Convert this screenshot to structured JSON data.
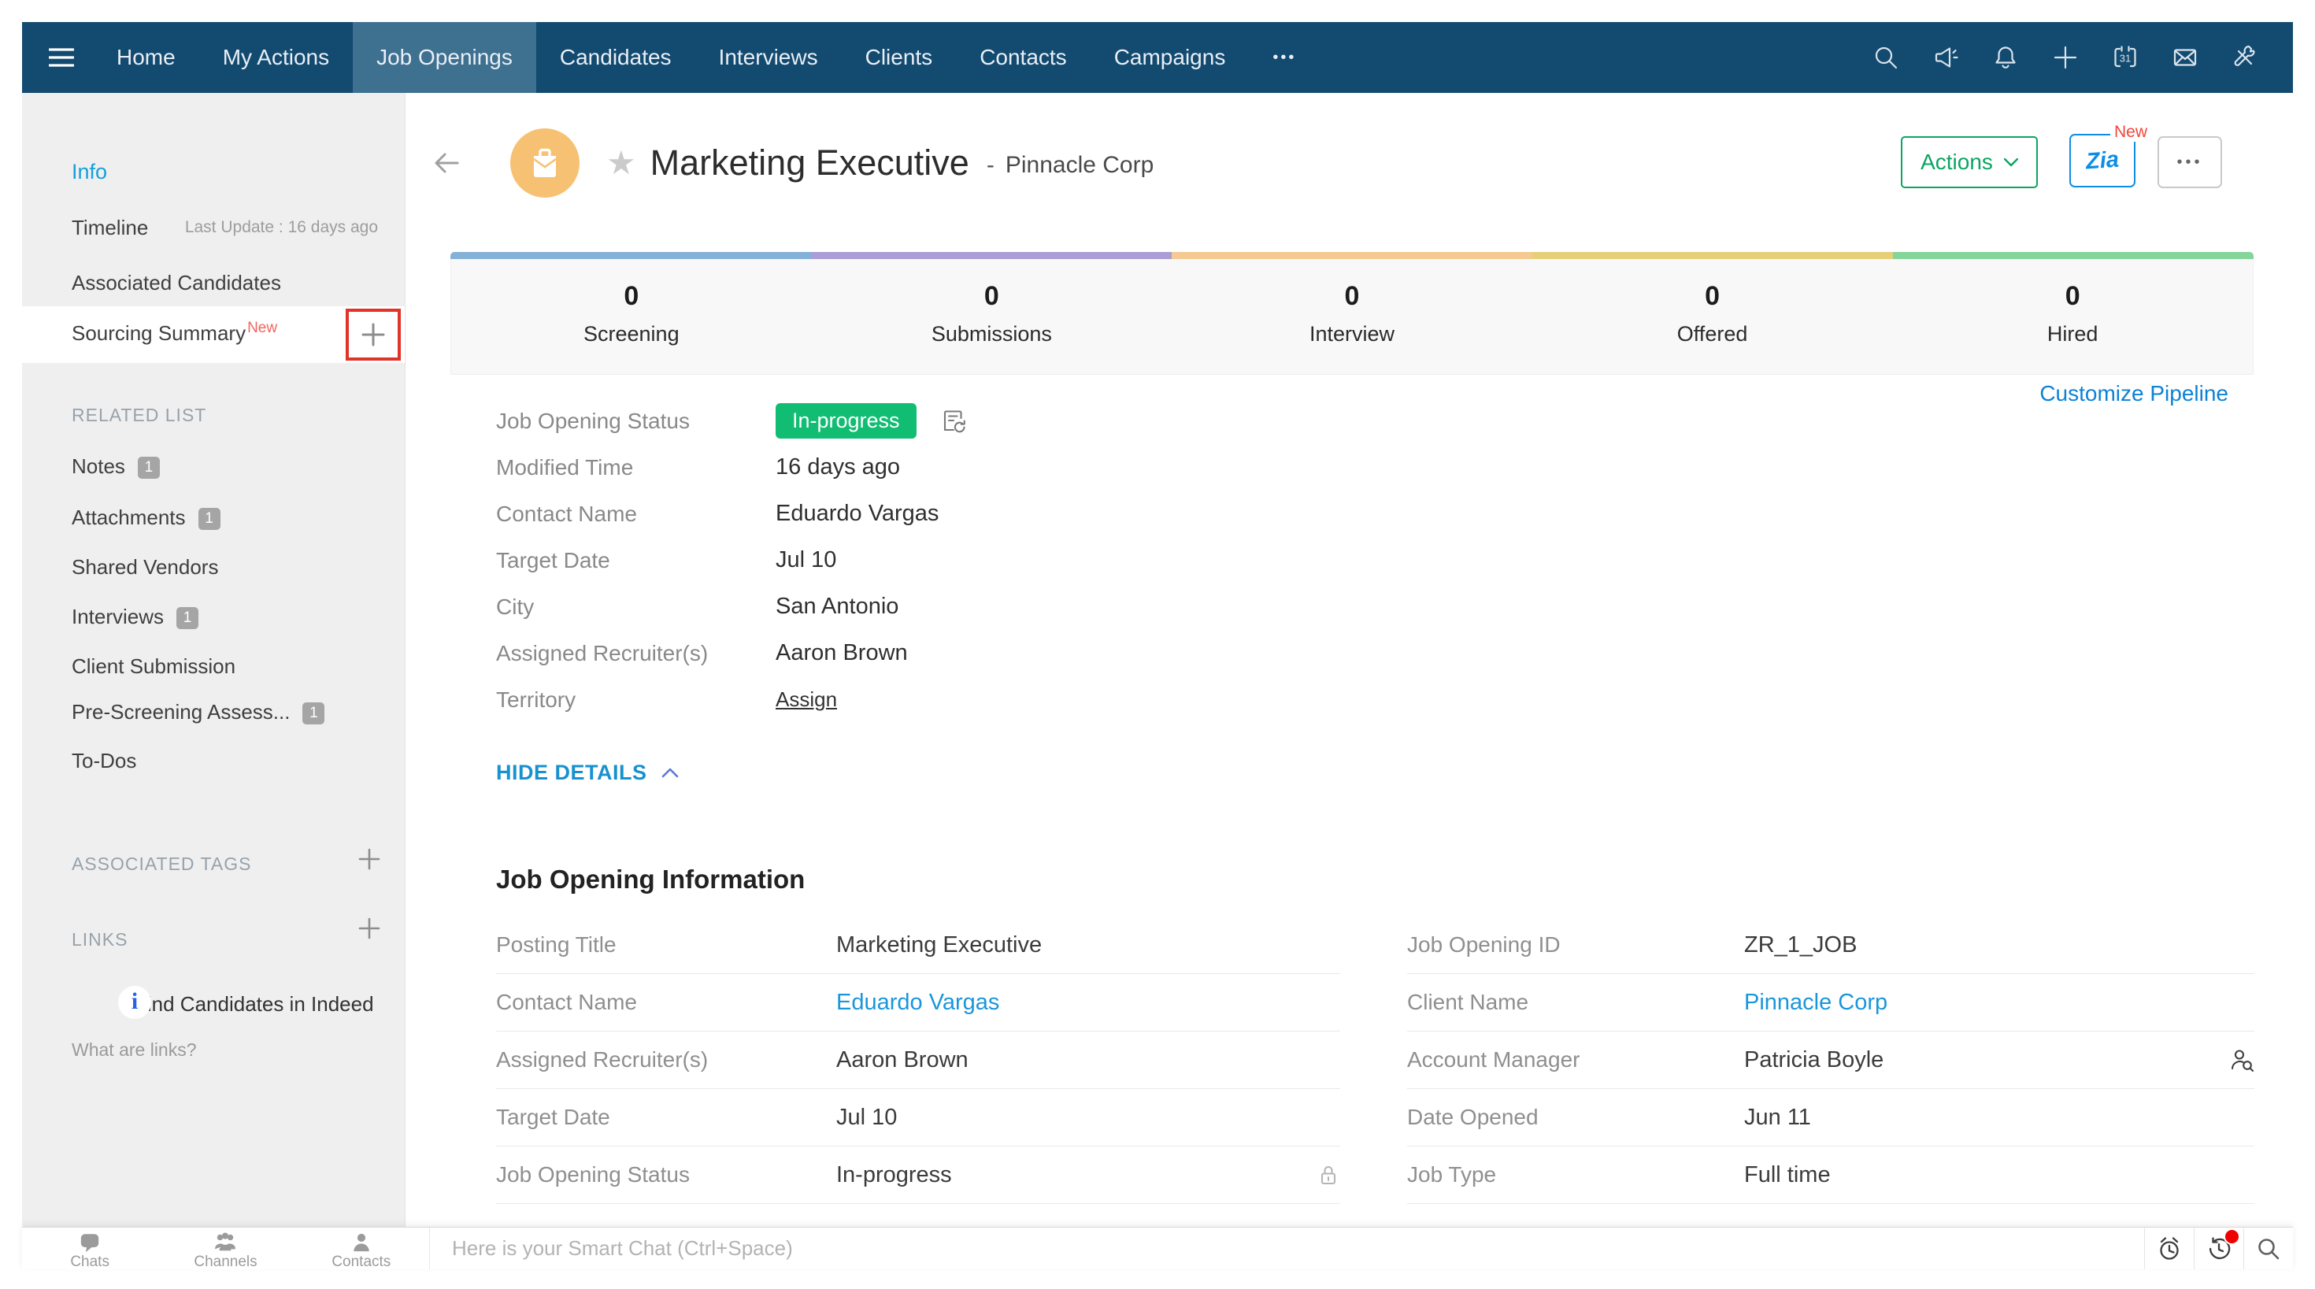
{
  "nav": {
    "items": [
      {
        "name": "home",
        "label": "Home"
      },
      {
        "name": "my-actions",
        "label": "My Actions"
      },
      {
        "name": "job-openings",
        "label": "Job Openings",
        "active": true
      },
      {
        "name": "candidates",
        "label": "Candidates"
      },
      {
        "name": "interviews",
        "label": "Interviews"
      },
      {
        "name": "clients",
        "label": "Clients"
      },
      {
        "name": "contacts",
        "label": "Contacts"
      },
      {
        "name": "campaigns",
        "label": "Campaigns"
      },
      {
        "name": "more",
        "label": "•••",
        "more": true
      }
    ],
    "right_icons": [
      {
        "name": "search-icon"
      },
      {
        "name": "megaphone-icon"
      },
      {
        "name": "bell-icon"
      },
      {
        "name": "plus-icon"
      },
      {
        "name": "calendar-icon",
        "label": "31"
      },
      {
        "name": "mail-icon"
      },
      {
        "name": "tools-icon"
      }
    ]
  },
  "sidebar": {
    "info_label": "Info",
    "timeline_label": "Timeline",
    "timeline_meta": "Last Update : 16 days ago",
    "associated_candidates_label": "Associated Candidates",
    "sourcing_label": "Sourcing Summary",
    "sourcing_new": "New",
    "related_header": "RELATED LIST",
    "related_items": [
      {
        "label": "Notes",
        "count": "1"
      },
      {
        "label": "Attachments",
        "count": "1"
      },
      {
        "label": "Shared Vendors"
      },
      {
        "label": "Interviews",
        "count": "1"
      },
      {
        "label": "Client Submission"
      },
      {
        "label": "Pre-Screening Assess...",
        "count": "1"
      },
      {
        "label": "To-Dos"
      }
    ],
    "tags_header": "ASSOCIATED TAGS",
    "links_header": "LINKS",
    "indeed_initial": "i",
    "indeed_link_label": "Find Candidates in Indeed",
    "what_are_links_label": "What are links?"
  },
  "header": {
    "title": "Marketing Executive",
    "separator": "-",
    "company": "Pinnacle Corp",
    "actions_label": "Actions",
    "zia_label": "Zia",
    "zia_new": "New",
    "more_dots": "•••"
  },
  "pipeline": {
    "customize_label": "Customize Pipeline",
    "stages": [
      {
        "name": "Screening",
        "count": "0",
        "color": "#85b1d8"
      },
      {
        "name": "Submissions",
        "count": "0",
        "color": "#ab9dd6"
      },
      {
        "name": "Interview",
        "count": "0",
        "color": "#f5ca92"
      },
      {
        "name": "Offered",
        "count": "0",
        "color": "#e7cf79"
      },
      {
        "name": "Hired",
        "count": "0",
        "color": "#84d59a"
      }
    ]
  },
  "details": {
    "rows": [
      {
        "label": "Job Opening Status",
        "value": "In-progress",
        "type": "badge"
      },
      {
        "label": "Modified Time",
        "value": "16 days ago"
      },
      {
        "label": "Contact Name",
        "value": "Eduardo Vargas"
      },
      {
        "label": "Target Date",
        "value": "Jul 10"
      },
      {
        "label": "City",
        "value": "San Antonio"
      },
      {
        "label": "Assigned Recruiter(s)",
        "value": "Aaron Brown"
      },
      {
        "label": "Territory",
        "value": "Assign",
        "type": "assign"
      }
    ],
    "hide_label": "HIDE DETAILS"
  },
  "jobinfo": {
    "header": "Job Opening Information",
    "left": [
      {
        "label": "Posting Title",
        "value": "Marketing Executive"
      },
      {
        "label": "Contact Name",
        "value": "Eduardo Vargas",
        "link": true
      },
      {
        "label": "Assigned Recruiter(s)",
        "value": "Aaron Brown"
      },
      {
        "label": "Target Date",
        "value": "Jul 10"
      },
      {
        "label": "Job Opening Status",
        "value": "In-progress",
        "lock": true
      }
    ],
    "right": [
      {
        "label": "Job Opening ID",
        "value": "ZR_1_JOB"
      },
      {
        "label": "Client Name",
        "value": "Pinnacle Corp",
        "link": true
      },
      {
        "label": "Account Manager",
        "value": "Patricia Boyle",
        "person": true
      },
      {
        "label": "Date Opened",
        "value": "Jun 11"
      },
      {
        "label": "Job Type",
        "value": "Full time"
      }
    ]
  },
  "chatbar": {
    "tabs": [
      {
        "name": "chats",
        "label": "Chats",
        "icon": "chat-bubble-icon"
      },
      {
        "name": "channels",
        "label": "Channels",
        "icon": "channels-icon"
      },
      {
        "name": "contacts",
        "label": "Contacts",
        "icon": "contact-person-icon"
      }
    ],
    "placeholder": "Here is your Smart Chat (Ctrl+Space)"
  },
  "colors": {
    "nav_bg": "#134a70",
    "nav_active_bg": "#3e7090",
    "accent_green": "#0aa562",
    "status_badge_green": "#10bd73",
    "link_blue": "#1a96db",
    "active_item_blue": "#15a0d9",
    "zia_blue": "#0d8ee6",
    "new_red": "#f0463c",
    "annotation_red": "#e23329",
    "avatar_orange": "#f7c173"
  }
}
